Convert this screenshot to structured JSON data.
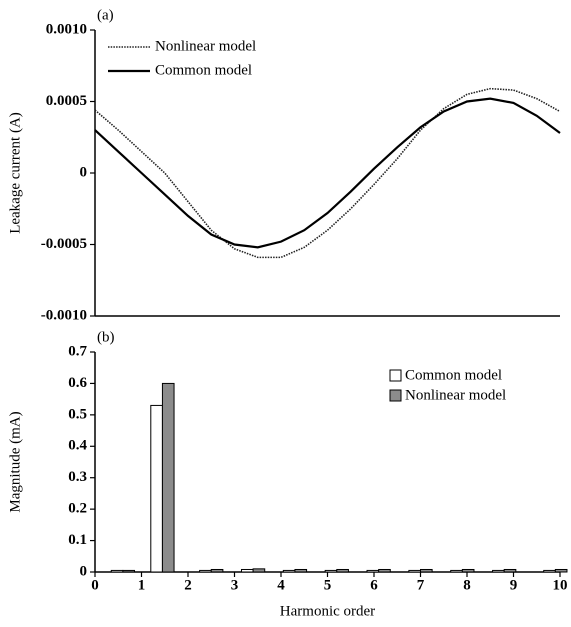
{
  "chart_data": [
    {
      "type": "line",
      "panel_label": "(a)",
      "y_label": "Leakage current (A)",
      "x": [
        0,
        0.5,
        1,
        1.5,
        2,
        2.5,
        3,
        3.5,
        4,
        4.5,
        5,
        5.5,
        6,
        6.5,
        7,
        7.5,
        8,
        8.5,
        9,
        9.5,
        10
      ],
      "xlim": [
        0,
        10
      ],
      "ylim": [
        -0.001,
        0.001
      ],
      "yticks": [
        {
          "value": -0.001,
          "label": "-0.0010"
        },
        {
          "value": -0.0005,
          "label": "-0.0005"
        },
        0,
        {
          "value": 0.0005,
          "label": "0.0005"
        },
        {
          "value": 0.001,
          "label": "0.0010"
        }
      ],
      "series": [
        {
          "name": "Nonlinear model",
          "color": "#222222",
          "style": "dotted",
          "values": [
            0.00044,
            0.0003,
            0.00015,
            0.0,
            -0.0002,
            -0.0004,
            -0.00053,
            -0.00059,
            -0.00059,
            -0.00052,
            -0.0004,
            -0.00025,
            -8e-05,
            0.0001,
            0.0003,
            0.00045,
            0.00055,
            0.00059,
            0.00058,
            0.00052,
            0.00043
          ]
        },
        {
          "name": "Common model",
          "color": "#000000",
          "style": "solid",
          "values": [
            0.0003,
            0.00015,
            0.0,
            -0.00015,
            -0.0003,
            -0.00043,
            -0.0005,
            -0.00052,
            -0.00048,
            -0.0004,
            -0.00028,
            -0.00013,
            3e-05,
            0.00018,
            0.00032,
            0.00043,
            0.0005,
            0.00052,
            0.00049,
            0.0004,
            0.00028
          ]
        }
      ]
    },
    {
      "type": "bar",
      "panel_label": "(b)",
      "y_label": "Magnitude (mA)",
      "x_label": "Harmonic order",
      "x": [
        0.6,
        1.45,
        2.5,
        3.4,
        4.3,
        5.2,
        6.1,
        7.0,
        7.9,
        8.8,
        9.9
      ],
      "xlim": [
        0,
        10
      ],
      "xticks": [
        0,
        1,
        2,
        3,
        4,
        5,
        6,
        7,
        8,
        9,
        10
      ],
      "ylim": [
        0,
        0.7
      ],
      "yticks": [
        0,
        0.1,
        0.2,
        0.3,
        0.4,
        0.5,
        0.6,
        0.7
      ],
      "series": [
        {
          "name": "Common model",
          "color": "#ffffff",
          "values": [
            0.005,
            0.53,
            0.005,
            0.008,
            0.005,
            0.005,
            0.005,
            0.005,
            0.005,
            0.005,
            0.005
          ]
        },
        {
          "name": "Nonlinear model",
          "color": "#8c8c8c",
          "values": [
            0.005,
            0.6,
            0.008,
            0.01,
            0.008,
            0.008,
            0.008,
            0.008,
            0.008,
            0.008,
            0.008
          ]
        }
      ]
    }
  ]
}
